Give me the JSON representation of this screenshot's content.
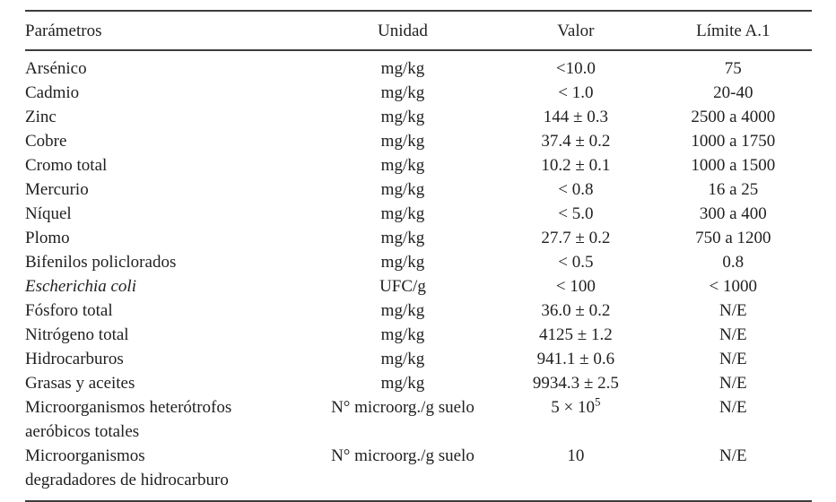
{
  "table": {
    "headers": [
      "Parámetros",
      "Unidad",
      "Valor",
      "Límite A.1"
    ],
    "rows": [
      {
        "param": "Arsénico",
        "unidad": "mg/kg",
        "valor": "<10.0",
        "limite": "75"
      },
      {
        "param": "Cadmio",
        "unidad": "mg/kg",
        "valor": "< 1.0",
        "limite": "20-40"
      },
      {
        "param": "Zinc",
        "unidad": "mg/kg",
        "valor": "144 ± 0.3",
        "limite": "2500 a 4000"
      },
      {
        "param": "Cobre",
        "unidad": "mg/kg",
        "valor": "37.4 ± 0.2",
        "limite": "1000 a 1750"
      },
      {
        "param": "Cromo total",
        "unidad": "mg/kg",
        "valor": "10.2 ± 0.1",
        "limite": "1000 a 1500"
      },
      {
        "param": "Mercurio",
        "unidad": "mg/kg",
        "valor": "< 0.8",
        "limite": "16 a 25"
      },
      {
        "param": "Níquel",
        "unidad": "mg/kg",
        "valor": "< 5.0",
        "limite": "300 a 400"
      },
      {
        "param": "Plomo",
        "unidad": "mg/kg",
        "valor": "27.7 ± 0.2",
        "limite": "750 a 1200"
      },
      {
        "param": "Bifenilos policlorados",
        "unidad": "mg/kg",
        "valor": "< 0.5",
        "limite": "0.8"
      },
      {
        "param": "Escherichia coli",
        "italic": true,
        "unidad": "UFC/g",
        "valor": "< 100",
        "limite": "< 1000"
      },
      {
        "param": "Fósforo total",
        "unidad": "mg/kg",
        "valor": "36.0 ± 0.2",
        "limite": "N/E"
      },
      {
        "param": "Nitrógeno total",
        "unidad": "mg/kg",
        "valor": "4125 ± 1.2",
        "limite": "N/E"
      },
      {
        "param": "Hidrocarburos",
        "unidad": "mg/kg",
        "valor": "941.1 ± 0.6",
        "limite": "N/E"
      },
      {
        "param": "Grasas y aceites",
        "unidad": "mg/kg",
        "valor": "9934.3 ± 2.5",
        "limite": "N/E"
      },
      {
        "param": "Microorganismos heterótrofos",
        "param_line2": "aeróbicos totales",
        "unidad": "N° microorg./g suelo",
        "valor": "5 × 10",
        "valor_sup": "5",
        "limite": "N/E"
      },
      {
        "param": "Microorganismos",
        "param_line2": "degradadores de hidrocarburo",
        "unidad": "N° microorg./g suelo",
        "valor": "10",
        "limite": "N/E"
      }
    ]
  }
}
